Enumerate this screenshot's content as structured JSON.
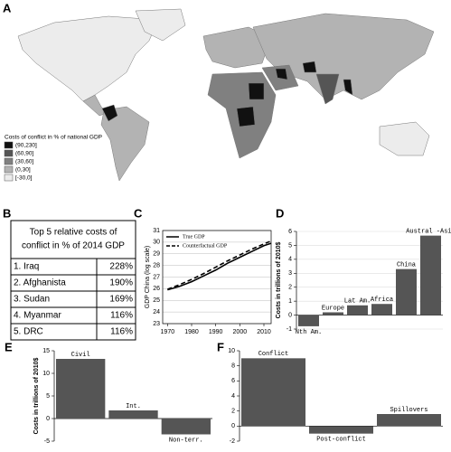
{
  "panel_labels": [
    "A",
    "B",
    "C",
    "D",
    "E",
    "F"
  ],
  "map": {
    "legend_title": "Costs of conflict in % of national GDP",
    "legend": [
      {
        "label": "(90,230]",
        "color": "#111111"
      },
      {
        "label": "(60,90]",
        "color": "#555555"
      },
      {
        "label": "(30,60]",
        "color": "#808080"
      },
      {
        "label": "(0,30]",
        "color": "#b3b3b3"
      },
      {
        "label": "[-30,0]",
        "color": "#ececec"
      }
    ]
  },
  "table": {
    "title": [
      "Top 5 relative costs of",
      "conflict in % of 2014 GDP"
    ],
    "rows": [
      [
        "1. Iraq",
        "228%"
      ],
      [
        "2. Afghanista",
        "190%"
      ],
      [
        "3. Sudan",
        "169%"
      ],
      [
        "4. Myanmar",
        "116%"
      ],
      [
        "5. DRC",
        "116%"
      ]
    ]
  },
  "chart_data": [
    {
      "type": "line",
      "ylabel": "GDP China (log scale)",
      "x": [
        1970,
        1975,
        1980,
        1985,
        1990,
        1995,
        2000,
        2005,
        2010,
        2013
      ],
      "series": [
        {
          "name": "True GDP",
          "color": "#000000",
          "dash": "solid",
          "values": [
            25.9,
            26.2,
            26.6,
            27.1,
            27.6,
            28.2,
            28.7,
            29.2,
            29.7,
            29.9
          ]
        },
        {
          "name": "Counterfactual GDP",
          "color": "#000000",
          "dash": "dashed",
          "values": [
            25.95,
            26.35,
            26.8,
            27.3,
            27.85,
            28.4,
            28.9,
            29.4,
            29.85,
            30.1
          ]
        }
      ],
      "xlim": [
        1968,
        2013
      ],
      "xticks": [
        1970,
        1980,
        1990,
        2000,
        2010
      ],
      "ylim": [
        23,
        31
      ],
      "yticks": [
        23,
        24,
        25,
        26,
        27,
        28,
        29,
        30,
        31
      ],
      "grid": true,
      "legend": "upper left"
    },
    {
      "type": "bar",
      "ylabel": "Costs in trillions of 2010$",
      "categories": [
        "Nth Am.",
        "Europe",
        "Lat Am.",
        "Africa",
        "China",
        "Austral -Asia"
      ],
      "values": [
        -0.8,
        0.2,
        0.7,
        0.8,
        3.3,
        5.7
      ],
      "color": "#555555",
      "ylim": [
        -1,
        6
      ],
      "yticks": [
        -1,
        0,
        1,
        2,
        3,
        4,
        5,
        6
      ],
      "grid": true
    },
    {
      "type": "bar",
      "ylabel": "Costs in trillions of 2010$",
      "categories": [
        "Civil",
        "Int.",
        "Non-terr."
      ],
      "values": [
        13.2,
        1.8,
        -3.5
      ],
      "color": "#555555",
      "ylim": [
        -5,
        15
      ],
      "yticks": [
        -5,
        0,
        5,
        10,
        15
      ],
      "grid": false
    },
    {
      "type": "bar",
      "categories": [
        "Conflict",
        "Post-conflict",
        "Spillovers"
      ],
      "values": [
        9.0,
        -1.0,
        1.6
      ],
      "color": "#555555",
      "ylim": [
        -2,
        10
      ],
      "yticks": [
        -2,
        0,
        2,
        4,
        6,
        8,
        10
      ],
      "grid": false
    }
  ]
}
